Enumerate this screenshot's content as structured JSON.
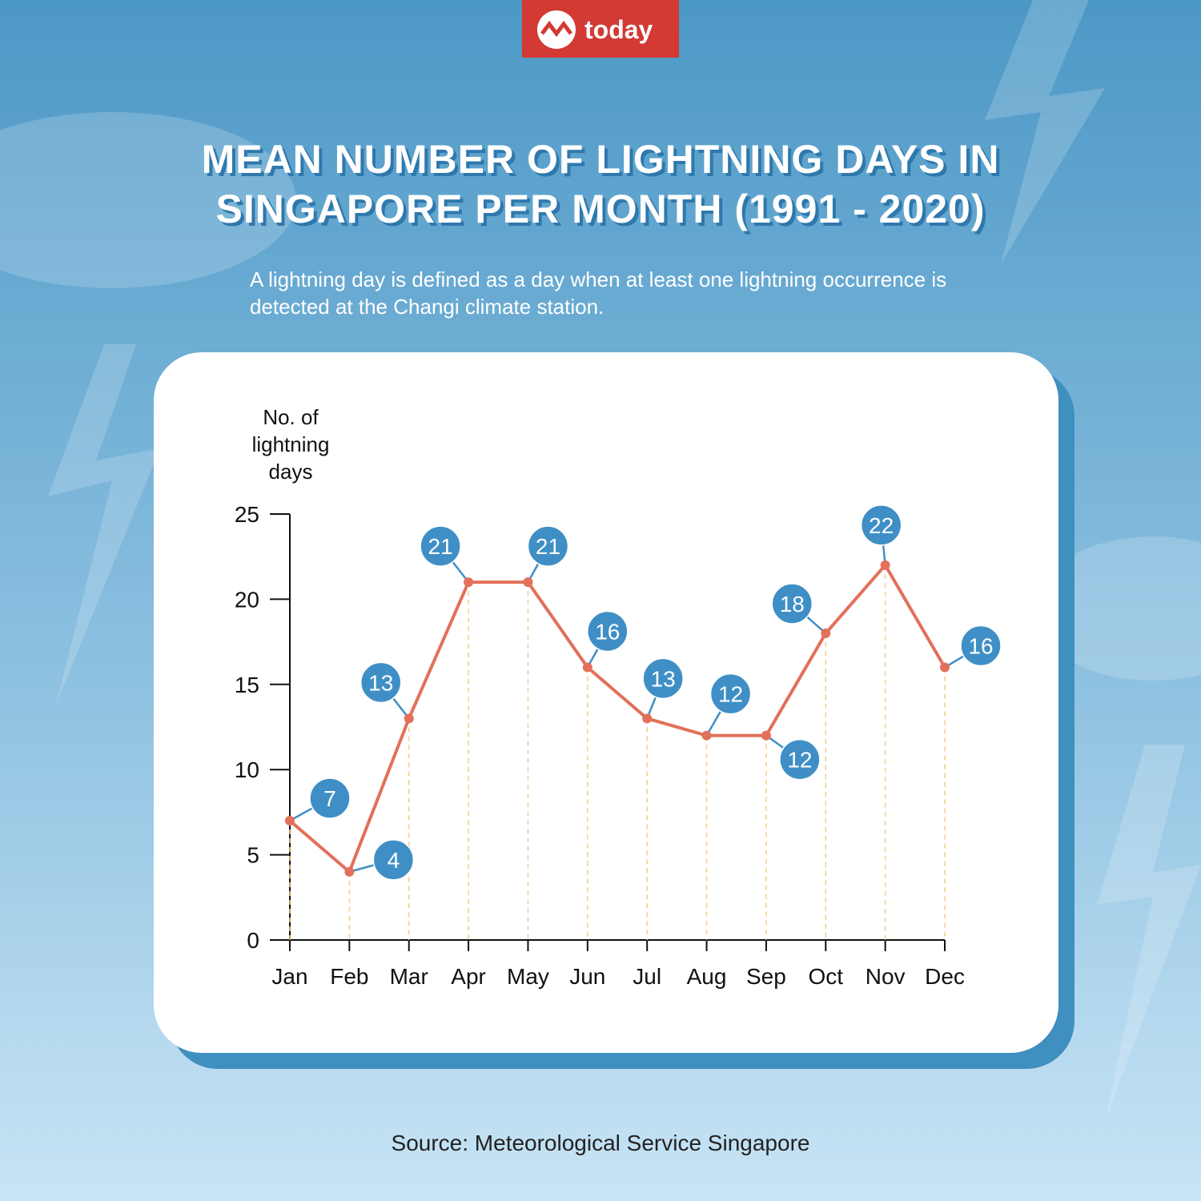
{
  "logo": "today",
  "chart_data": {
    "type": "line",
    "title": "MEAN NUMBER OF LIGHTNING DAYS IN SINGAPORE PER MONTH (1991 - 2020)",
    "subtitle": "A lightning day is defined as a day when at least one lightning occurrence is detected at the Changi climate station.",
    "y_label": "No. of lightning days",
    "categories": [
      "Jan",
      "Feb",
      "Mar",
      "Apr",
      "May",
      "Jun",
      "Jul",
      "Aug",
      "Sep",
      "Oct",
      "Nov",
      "Dec"
    ],
    "values": [
      7,
      4,
      13,
      21,
      21,
      16,
      13,
      12,
      12,
      18,
      22,
      16
    ],
    "color": "#e2705a",
    "label_color": "#3f8fc6",
    "ylim": [
      0,
      25
    ],
    "yticks": [
      0,
      5,
      10,
      15,
      20,
      25
    ],
    "source": "Source: Meteorological Service Singapore"
  }
}
